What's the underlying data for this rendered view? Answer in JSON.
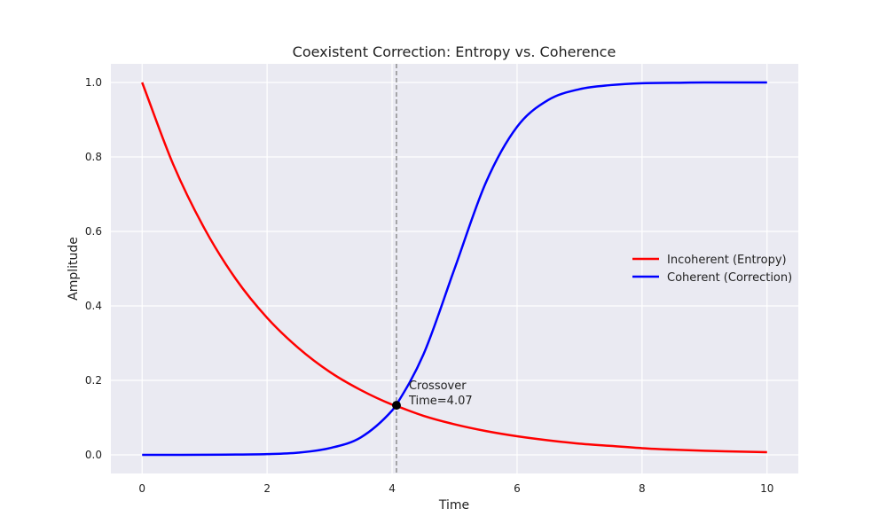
{
  "chart_data": {
    "type": "line",
    "title": "Coexistent Correction: Entropy vs. Coherence",
    "xlabel": "Time",
    "ylabel": "Amplitude",
    "xlim": [
      -0.5,
      10.5
    ],
    "ylim": [
      -0.05,
      1.05
    ],
    "xticks": [
      0,
      2,
      4,
      6,
      8,
      10
    ],
    "yticks": [
      0.0,
      0.2,
      0.4,
      0.6,
      0.8,
      1.0
    ],
    "xtick_labels": [
      "0",
      "2",
      "4",
      "6",
      "8",
      "10"
    ],
    "ytick_labels": [
      "0.0",
      "0.2",
      "0.4",
      "0.6",
      "0.8",
      "1.0"
    ],
    "grid": true,
    "legend_position": "center-right",
    "colors": {
      "background": "#eaeaf2",
      "grid": "#ffffff"
    },
    "x": [
      0,
      0.5,
      1,
      1.5,
      2,
      2.5,
      3,
      3.5,
      4,
      4.07,
      4.5,
      5,
      5.5,
      6,
      6.5,
      7,
      7.5,
      8,
      8.5,
      9,
      9.5,
      10
    ],
    "series": [
      {
        "name": "Incoherent (Entropy)",
        "color": "#ff0000",
        "values": [
          1.0,
          0.779,
          0.607,
          0.472,
          0.368,
          0.287,
          0.223,
          0.174,
          0.135,
          0.131,
          0.105,
          0.082,
          0.064,
          0.05,
          0.039,
          0.03,
          0.024,
          0.018,
          0.014,
          0.011,
          0.009,
          0.007
        ]
      },
      {
        "name": "Coherent (Correction)",
        "color": "#0000ff",
        "values": [
          0.0,
          0.0001,
          0.0003,
          0.0008,
          0.002,
          0.006,
          0.018,
          0.047,
          0.119,
          0.135,
          0.269,
          0.5,
          0.731,
          0.881,
          0.953,
          0.982,
          0.993,
          0.998,
          0.999,
          1.0,
          1.0,
          1.0
        ]
      }
    ],
    "crossover": {
      "x": 4.07,
      "y": 0.133,
      "label_line1": "Crossover",
      "label_line2": "Time=4.07"
    }
  }
}
